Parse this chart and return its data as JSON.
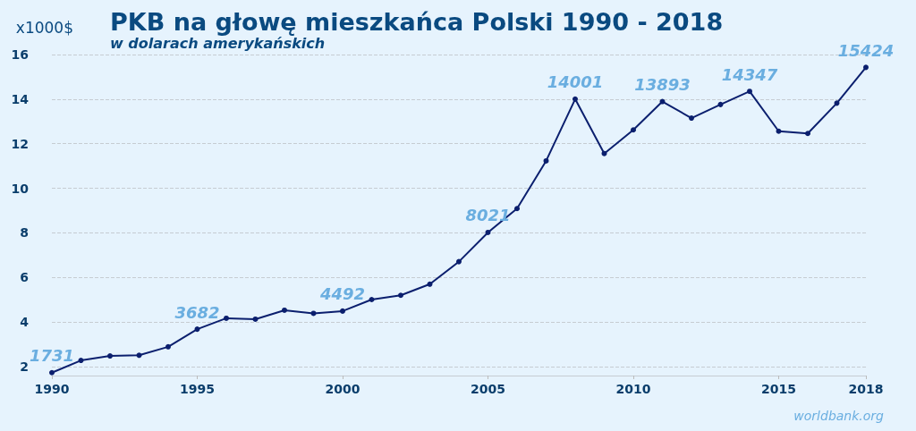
{
  "chart_data": {
    "type": "line",
    "title": "PKB na głowę mieszkańca Polski 1990 - 2018",
    "subtitle": "w dolarach amerykańskich",
    "ylabel": "x1000$",
    "x": [
      1990,
      1991,
      1992,
      1993,
      1994,
      1995,
      1996,
      1997,
      1998,
      1999,
      2000,
      2001,
      2002,
      2003,
      2004,
      2005,
      2006,
      2007,
      2008,
      2009,
      2010,
      2011,
      2012,
      2013,
      2014,
      2015,
      2016,
      2017,
      2018
    ],
    "values": [
      1.731,
      2.28,
      2.48,
      2.51,
      2.89,
      3.682,
      4.17,
      4.13,
      4.53,
      4.39,
      4.492,
      5.01,
      5.2,
      5.7,
      6.71,
      8.021,
      9.09,
      11.23,
      14.001,
      11.56,
      12.62,
      13.893,
      13.15,
      13.76,
      14.347,
      12.56,
      12.46,
      13.82,
      15.424
    ],
    "color": "#0b1f6e",
    "marker": "circle",
    "line_style": "solid",
    "grid": "y",
    "xlim": [
      1990,
      2018
    ],
    "xticks": [
      1990,
      1995,
      2000,
      2005,
      2010,
      2015,
      2018
    ],
    "ylim": [
      1.6,
      16
    ],
    "yticks": [
      2,
      4,
      6,
      8,
      10,
      12,
      14,
      16
    ],
    "annotations": [
      {
        "text": "1731",
        "x": 1990,
        "y": 1.731
      },
      {
        "text": "3682",
        "x": 1995,
        "y": 3.682
      },
      {
        "text": "4492",
        "x": 2000,
        "y": 4.492
      },
      {
        "text": "8021",
        "x": 2005,
        "y": 8.021
      },
      {
        "text": "14001",
        "x": 2008,
        "y": 14.001
      },
      {
        "text": "13893",
        "x": 2011,
        "y": 13.893
      },
      {
        "text": "14347",
        "x": 2014,
        "y": 14.347
      },
      {
        "text": "15424",
        "x": 2018,
        "y": 15.424
      },
      "worldbank.org"
    ]
  }
}
